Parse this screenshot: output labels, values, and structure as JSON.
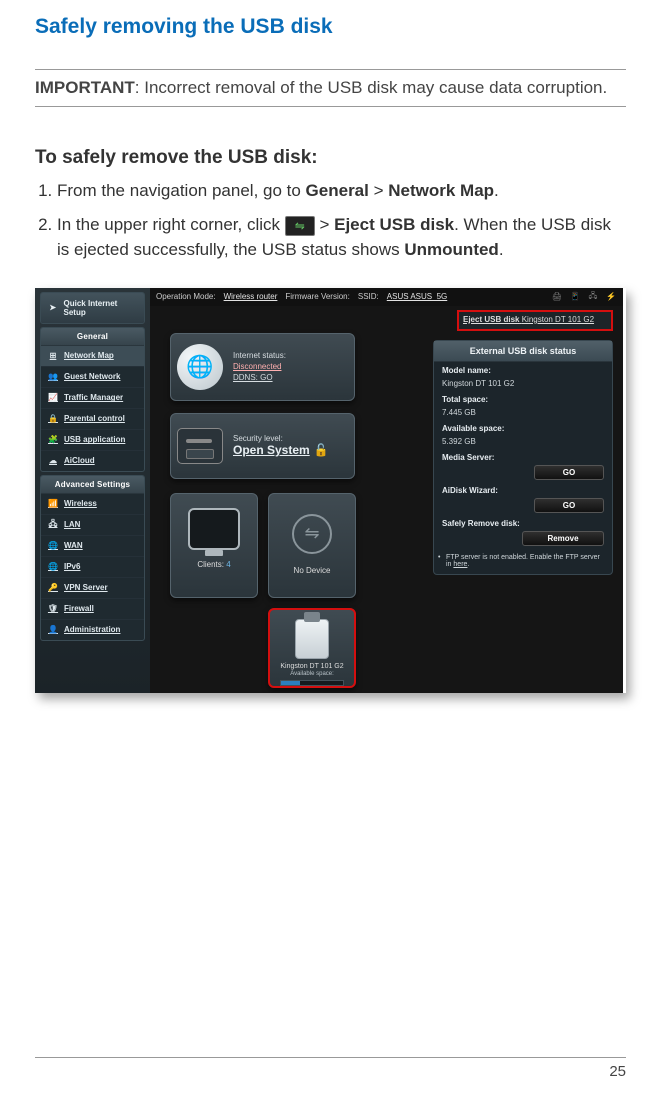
{
  "page": {
    "title": "Safely removing the USB disk",
    "important_label": "IMPORTANT",
    "important_text": ":  Incorrect removal of the USB disk may cause data corruption.",
    "section_heading": "To safely remove the USB disk:",
    "step1_pre": "From the navigation panel, go to ",
    "step1_b1": "General",
    "step1_mid": " > ",
    "step1_b2": "Network Map",
    "step1_post": ".",
    "step2_pre": "In the upper right corner, click ",
    "step2_mid": " > ",
    "step2_b1": "Eject USB disk",
    "step2_post1": ". When the USB disk is ejected successfully, the USB status shows ",
    "step2_b2": "Unmounted",
    "step2_post2": ".",
    "page_number": "25"
  },
  "router": {
    "topbar": {
      "op_mode_lbl": "Operation Mode:",
      "op_mode_val": "Wireless router",
      "fw_lbl": "Firmware Version:",
      "ssid_lbl": "SSID:",
      "ssid_val": "ASUS  ASUS_5G"
    },
    "eject_popup": {
      "link": "Eject USB disk",
      "device": "Kingston DT 101 G2"
    },
    "sidebar": {
      "qis": "Quick Internet Setup",
      "general_head": "General",
      "general_items": [
        {
          "icon": "network",
          "label": "Network Map",
          "sel": true
        },
        {
          "icon": "guest",
          "label": "Guest Network"
        },
        {
          "icon": "traffic",
          "label": "Traffic Manager"
        },
        {
          "icon": "lock",
          "label": "Parental control"
        },
        {
          "icon": "usb",
          "label": "USB application"
        },
        {
          "icon": "cloud",
          "label": "AiCloud"
        }
      ],
      "adv_head": "Advanced Settings",
      "adv_items": [
        {
          "icon": "wifi",
          "label": "Wireless"
        },
        {
          "icon": "lan",
          "label": "LAN"
        },
        {
          "icon": "wan",
          "label": "WAN"
        },
        {
          "icon": "ipv6",
          "label": "IPv6"
        },
        {
          "icon": "vpn",
          "label": "VPN Server"
        },
        {
          "icon": "shield",
          "label": "Firewall"
        },
        {
          "icon": "admin",
          "label": "Administration"
        }
      ]
    },
    "cards": {
      "internet": {
        "l1": "Internet status:",
        "l2": "Disconnected",
        "l3": "DDNS: GO"
      },
      "security": {
        "l1": "Security level:",
        "l2": "Open System"
      },
      "clients": {
        "label": "Clients:",
        "count": "4"
      },
      "nodevice": {
        "label": "No Device"
      },
      "usbdrive": {
        "label": "Kingston DT 101 G2",
        "avail_lbl": "Available space:"
      }
    },
    "status": {
      "title": "External USB disk status",
      "model_lbl": "Model name:",
      "model_val": "Kingston DT 101 G2",
      "total_lbl": "Total space:",
      "total_val": "7.445 GB",
      "avail_lbl": "Available space:",
      "avail_val": "5.392 GB",
      "media_lbl": "Media Server:",
      "aidisk_lbl": "AiDisk Wizard:",
      "safely_lbl": "Safely Remove disk:",
      "go": "GO",
      "remove": "Remove",
      "ftp_pre": "FTP server is not enabled. Enable the FTP server in ",
      "ftp_link": "here",
      "ftp_post": "."
    }
  },
  "icons": {
    "network": "⊞",
    "guest": "👥",
    "traffic": "📈",
    "lock": "🔒",
    "usb": "🧩",
    "cloud": "☁",
    "wifi": "📶",
    "lan": "🖧",
    "wan": "🌐",
    "ipv6": "🌐",
    "vpn": "🔑",
    "shield": "🛡",
    "admin": "👤",
    "qis": "➤",
    "usb_sym": "⇋",
    "printer": "🖨",
    "phone": "📱",
    "net": "🖧",
    "plug": "⚡"
  },
  "colors": {
    "title": "#0a6db8",
    "highlight_border": "#d40f0f",
    "sidebar_bg_top": "#2a3439",
    "sidebar_bg_bot": "#1b2328",
    "card_grad_top": "#404b52",
    "card_grad_bot": "#2b353b",
    "btn_grad_top": "#2f2f2f",
    "btn_grad_bot": "#111111",
    "usb_bar_fill": "#2b7fbf"
  }
}
